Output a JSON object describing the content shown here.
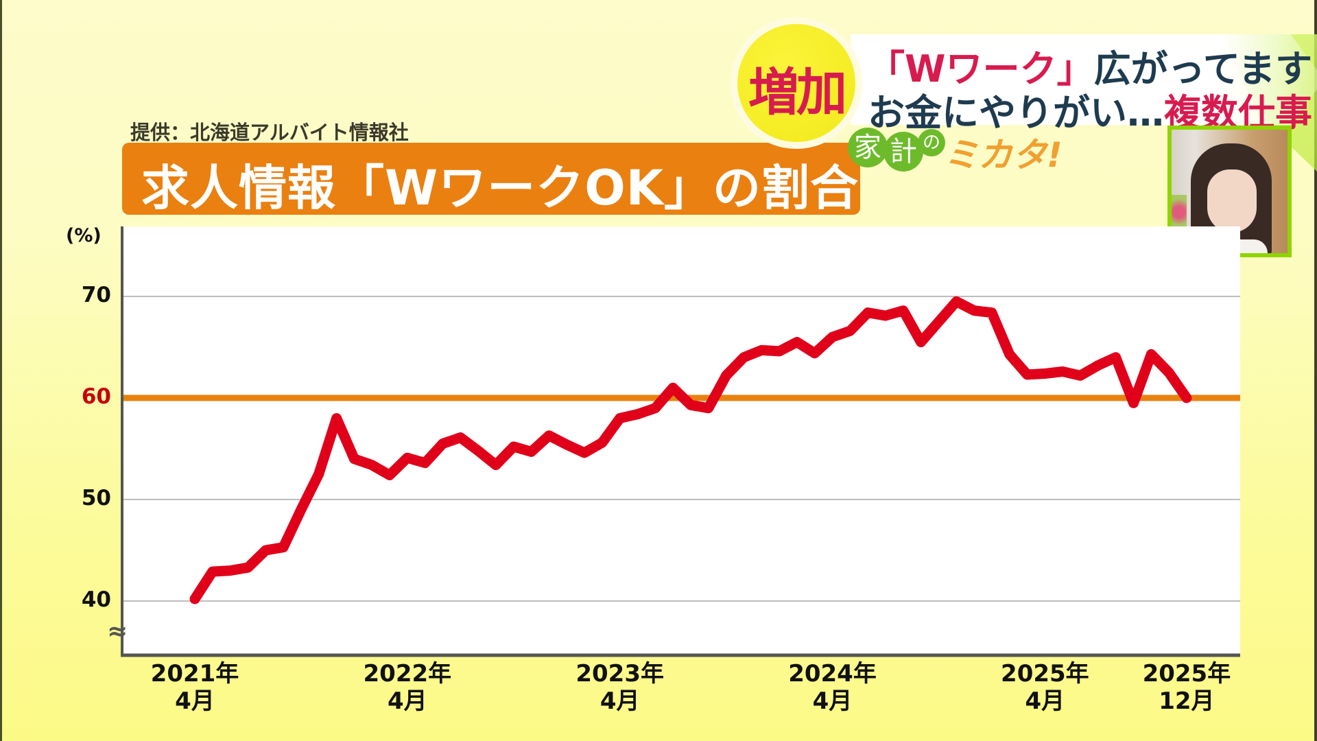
{
  "header": {
    "source": "提供：北海道アルバイト情報社",
    "title": "求人情報「WワークOK」の割合"
  },
  "badge": {
    "label": "増加"
  },
  "banner": {
    "line1_highlight": "「Wワーク」",
    "line1_rest": "広がってます",
    "line2_rest": "お金にやりがい…",
    "line2_highlight": "複数仕事"
  },
  "logo": {
    "char1": "家",
    "char2": "計",
    "char3": "の",
    "mikata": "ミカタ!"
  },
  "colors": {
    "line": "#e0001a",
    "reference": "#e8820f",
    "grid": "#bdbdbd",
    "axis": "#555555",
    "highlight_tick": "#c8000a",
    "title_bg": "#ea8010",
    "badge_text": "#d81b4f"
  },
  "chart_data": {
    "type": "line",
    "title": "求人情報「WワークOK」の割合",
    "source": "提供：北海道アルバイト情報社",
    "ylabel": "(%)",
    "xlabel": "",
    "ylim": [
      35,
      75
    ],
    "yticks": [
      40,
      50,
      60,
      70
    ],
    "ytick_labels": [
      "40",
      "50",
      "60",
      "70"
    ],
    "highlight_tick": 60,
    "reference_line": 60,
    "axis_break": true,
    "grid": true,
    "x_start": "2021-04",
    "x_end": "2025-12",
    "xtick_labels": [
      {
        "year": "2021年",
        "month": "4月",
        "index": 0
      },
      {
        "year": "2022年",
        "month": "4月",
        "index": 12
      },
      {
        "year": "2023年",
        "month": "4月",
        "index": 24
      },
      {
        "year": "2024年",
        "month": "4月",
        "index": 36
      },
      {
        "year": "2025年",
        "month": "4月",
        "index": 48
      },
      {
        "year": "2025年",
        "month": "12月",
        "index": 56
      }
    ],
    "series": [
      {
        "name": "WワークOKの割合",
        "values": [
          40.2,
          42.9,
          43.0,
          43.3,
          45.0,
          45.3,
          49.0,
          52.5,
          58.0,
          54.0,
          53.4,
          52.4,
          54.1,
          53.6,
          55.5,
          56.1,
          54.8,
          53.4,
          55.2,
          54.7,
          56.3,
          55.4,
          54.6,
          55.6,
          58.0,
          58.4,
          59.0,
          61.0,
          59.3,
          59.0,
          62.2,
          64.0,
          64.7,
          64.6,
          65.5,
          64.4,
          66.0,
          66.6,
          68.4,
          68.1,
          68.6,
          65.5,
          67.5,
          69.5,
          68.6,
          68.4,
          64.3,
          62.3,
          62.4,
          62.6,
          62.2,
          63.2,
          64.0,
          59.5,
          64.3,
          62.5,
          60.0
        ]
      }
    ]
  }
}
